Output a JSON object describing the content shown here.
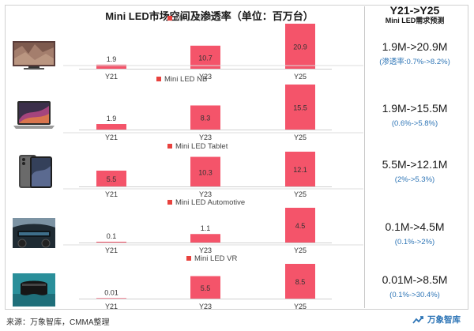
{
  "title": "Mini LED市场空间及渗透率（单位：百万台）",
  "right_header": {
    "line1": "Y21->Y25",
    "line2": "Mini LED需求预测"
  },
  "source": "来源：万象智库，CMMA整理",
  "brand": "万象智库",
  "colors": {
    "bar": "#f4546a",
    "legend": "#e8423e",
    "note": "#2e75b6"
  },
  "chart_data": [
    {
      "type": "bar",
      "series_name": "Mini LED TV",
      "categories": [
        "Y21",
        "Y23",
        "Y25"
      ],
      "values": [
        1.9,
        10.7,
        20.9
      ],
      "forecast": "1.9M->20.9M",
      "penetration": "(渗透率:0.7%->8.2%)",
      "icon": "tv-icon"
    },
    {
      "type": "bar",
      "series_name": "Mini LED NB",
      "categories": [
        "Y21",
        "Y23",
        "Y25"
      ],
      "values": [
        1.9,
        8.3,
        15.5
      ],
      "forecast": "1.9M->15.5M",
      "penetration": "(0.6%->5.8%)",
      "icon": "laptop-icon"
    },
    {
      "type": "bar",
      "series_name": "Mini LED Tablet",
      "categories": [
        "Y21",
        "Y23",
        "Y25"
      ],
      "values": [
        5.5,
        10.3,
        12.1
      ],
      "forecast": "5.5M->12.1M",
      "penetration": "(2%->5.3%)",
      "icon": "tablet-icon"
    },
    {
      "type": "bar",
      "series_name": "Mini LED Automotive",
      "categories": [
        "Y21",
        "Y23",
        "Y25"
      ],
      "values": [
        0.1,
        1.1,
        4.5
      ],
      "forecast": "0.1M->4.5M",
      "penetration": "(0.1%->2%)",
      "icon": "car-dashboard-icon"
    },
    {
      "type": "bar",
      "series_name": "Mini LED VR",
      "categories": [
        "Y21",
        "Y23",
        "Y25"
      ],
      "values": [
        0.01,
        5.5,
        8.5
      ],
      "forecast": "0.01M->8.5M",
      "penetration": "(0.1%->30.4%)",
      "icon": "vr-headset-icon"
    }
  ]
}
